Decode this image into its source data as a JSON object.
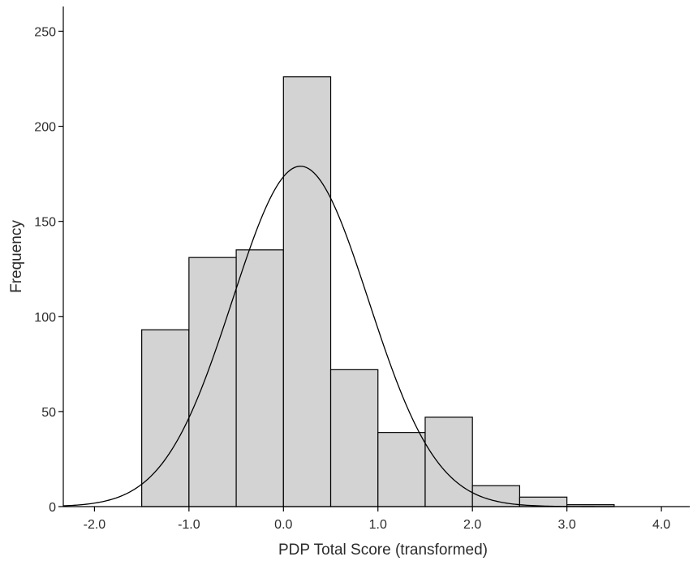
{
  "chart_data": {
    "type": "bar",
    "subtype": "histogram",
    "title": "",
    "xlabel": "PDP Total Score (transformed)",
    "ylabel": "Frequency",
    "xlim": [
      -2.33,
      4.3
    ],
    "ylim": [
      0,
      263
    ],
    "grid": false,
    "bar_color": "#d3d3d3",
    "bar_edge_color": "#000000",
    "bins": [
      {
        "start": -1.5,
        "end": -1.0,
        "count": 93
      },
      {
        "start": -1.0,
        "end": -0.5,
        "count": 131
      },
      {
        "start": -0.5,
        "end": 0.0,
        "count": 135
      },
      {
        "start": 0.0,
        "end": 0.5,
        "count": 226
      },
      {
        "start": 0.5,
        "end": 1.0,
        "count": 72
      },
      {
        "start": 1.0,
        "end": 1.5,
        "count": 39
      },
      {
        "start": 1.5,
        "end": 2.0,
        "count": 47
      },
      {
        "start": 2.0,
        "end": 2.5,
        "count": 11
      },
      {
        "start": 2.5,
        "end": 3.0,
        "count": 5
      },
      {
        "start": 3.0,
        "end": 3.5,
        "count": 1
      }
    ],
    "normal_curve": {
      "mean": 0.18,
      "std": 0.72,
      "peak": 179,
      "x_from": -2.33,
      "x_to": 3.5
    },
    "x_ticks": [
      {
        "value": -2.0,
        "label": "-2.0"
      },
      {
        "value": -1.0,
        "label": "-1.0"
      },
      {
        "value": 0.0,
        "label": "0.0"
      },
      {
        "value": 1.0,
        "label": "1.0"
      },
      {
        "value": 2.0,
        "label": "2.0"
      },
      {
        "value": 3.0,
        "label": "3.0"
      },
      {
        "value": 4.0,
        "label": "4.0"
      }
    ],
    "y_ticks": [
      {
        "value": 0,
        "label": "0"
      },
      {
        "value": 50,
        "label": "50"
      },
      {
        "value": 100,
        "label": "100"
      },
      {
        "value": 150,
        "label": "150"
      },
      {
        "value": 200,
        "label": "200"
      },
      {
        "value": 250,
        "label": "250"
      }
    ]
  }
}
